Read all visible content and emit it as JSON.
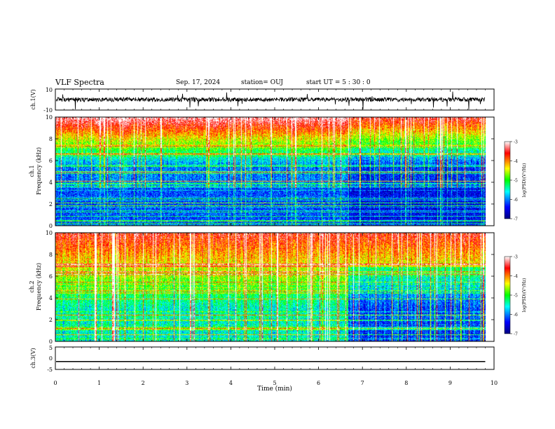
{
  "header": {
    "title": "VLF Spectra",
    "date": "Sep. 17, 2024",
    "station": "station= OUJ",
    "start_ut": "start  UT  =   5  : 30 : 0"
  },
  "chart_data": [
    {
      "type": "line",
      "panel": "ch1-waveform",
      "ylabel": "ch.1(V)",
      "ylim": [
        -10,
        10
      ],
      "yticks": [
        "10",
        "-10"
      ],
      "x_range_min": [
        0,
        9.8
      ],
      "baseline_level": 0,
      "noise_amplitude_typical": 2,
      "spike_amplitude_max": 10
    },
    {
      "type": "heatmap",
      "panel": "ch1-spectrogram",
      "ylabel_channel": "ch.1",
      "ylabel": "Frequency (kHz)",
      "ylim": [
        0,
        10
      ],
      "yticks": [
        "0",
        "2",
        "4",
        "6",
        "8",
        "10"
      ],
      "colorbar": {
        "label": "log(PSD)(V²/Hz)",
        "range": [
          -7,
          -3
        ],
        "ticks": [
          "-3",
          "-4",
          "-5",
          "-6",
          "-7"
        ]
      }
    },
    {
      "type": "heatmap",
      "panel": "ch2-spectrogram",
      "ylabel_channel": "ch.2",
      "ylabel": "Frequency (kHz)",
      "ylim": [
        0,
        10
      ],
      "yticks": [
        "0",
        "2",
        "4",
        "6",
        "8",
        "10"
      ],
      "colorbar": {
        "label": "log(PSD)(V²/Hz)",
        "range": [
          -7,
          -3
        ],
        "ticks": [
          "-3",
          "-4",
          "-5",
          "-6",
          "-7"
        ]
      }
    },
    {
      "type": "line",
      "panel": "ch3-waveform",
      "ylabel": "ch.3(V)",
      "ylim": [
        -5,
        5
      ],
      "yticks": [
        "5",
        "0",
        "-5"
      ],
      "x_range_min": [
        0,
        9.8
      ],
      "level": -1.5
    }
  ],
  "xaxis": {
    "label": "Time (min)",
    "range": [
      0,
      10
    ],
    "ticks": [
      "0",
      "1",
      "2",
      "3",
      "4",
      "5",
      "6",
      "7",
      "8",
      "9",
      "10"
    ]
  }
}
